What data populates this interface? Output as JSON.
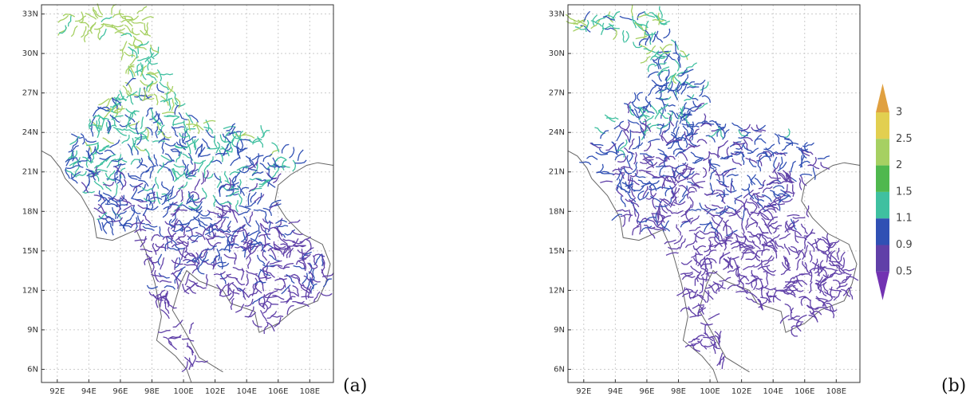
{
  "map": {
    "xlim": [
      91,
      109.5
    ],
    "ylim": [
      5,
      33.7
    ],
    "xticks": [
      {
        "value": 92,
        "label": "92E"
      },
      {
        "value": 94,
        "label": "94E"
      },
      {
        "value": 96,
        "label": "96E"
      },
      {
        "value": 98,
        "label": "98E"
      },
      {
        "value": 100,
        "label": "100E"
      },
      {
        "value": 102,
        "label": "102E"
      },
      {
        "value": 104,
        "label": "104E"
      },
      {
        "value": 106,
        "label": "106E"
      },
      {
        "value": 108,
        "label": "108E"
      }
    ],
    "yticks": [
      {
        "value": 33,
        "label": "33N"
      },
      {
        "value": 30,
        "label": "30N"
      },
      {
        "value": 27,
        "label": "27N"
      },
      {
        "value": 24,
        "label": "24N"
      },
      {
        "value": 21,
        "label": "21N"
      },
      {
        "value": 18,
        "label": "18N"
      },
      {
        "value": 15,
        "label": "15N"
      },
      {
        "value": 12,
        "label": "12N"
      },
      {
        "value": 9,
        "label": "9N"
      },
      {
        "value": 6,
        "label": "6N"
      }
    ],
    "grid": true,
    "panels": [
      {
        "label": "(a)"
      },
      {
        "label": "(b)"
      }
    ]
  },
  "colorbar": {
    "levels": [
      3,
      2.5,
      2,
      1.5,
      1.1,
      0.9,
      0.5
    ],
    "colors": [
      "#e0a040",
      "#e2cf50",
      "#a6d062",
      "#4fb84e",
      "#3fc0a0",
      "#3050b4",
      "#6040a8",
      "#7232b2"
    ]
  }
}
